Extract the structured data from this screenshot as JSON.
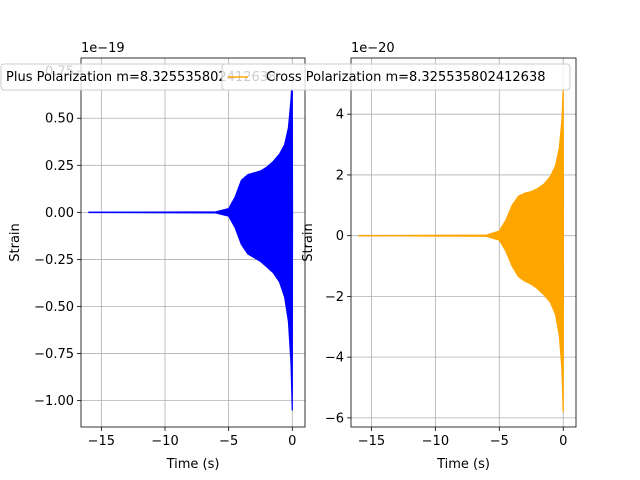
{
  "chart_data": [
    {
      "type": "line",
      "xlabel": "Time (s)",
      "ylabel": "Strain",
      "offset_text": "1e−19",
      "exponent": -19,
      "xlim": [
        -16.6,
        1.0
      ],
      "ylim": [
        -1.14,
        0.82
      ],
      "xticks": [
        -15,
        -10,
        -5,
        0
      ],
      "xtick_labels": [
        "−15",
        "−10",
        "−5",
        "0"
      ],
      "yticks": [
        -1.0,
        -0.75,
        -0.5,
        -0.25,
        0.0,
        0.25,
        0.5,
        0.75
      ],
      "ytick_labels": [
        "−1.00",
        "−0.75",
        "−0.50",
        "−0.25",
        "0.00",
        "0.25",
        "0.50",
        "0.75"
      ],
      "grid": true,
      "legend_position": "top",
      "series": [
        {
          "name": "Plus Polarization m=8.325535802412638",
          "color": "#0000ff",
          "envelope_upper": [
            [
              -16,
              0.0
            ],
            [
              -6,
              0.003
            ],
            [
              -5,
              0.02
            ],
            [
              -4.5,
              0.08
            ],
            [
              -4,
              0.17
            ],
            [
              -3.5,
              0.2
            ],
            [
              -3,
              0.21
            ],
            [
              -2.5,
              0.22
            ],
            [
              -2,
              0.24
            ],
            [
              -1.5,
              0.27
            ],
            [
              -1,
              0.31
            ],
            [
              -0.6,
              0.36
            ],
            [
              -0.3,
              0.45
            ],
            [
              -0.1,
              0.6
            ],
            [
              0.0,
              0.72
            ],
            [
              0.02,
              0.0
            ]
          ],
          "envelope_lower": [
            [
              -16,
              0.0
            ],
            [
              -6,
              -0.003
            ],
            [
              -5,
              -0.02
            ],
            [
              -4.5,
              -0.08
            ],
            [
              -4,
              -0.17
            ],
            [
              -3.5,
              -0.22
            ],
            [
              -3,
              -0.24
            ],
            [
              -2.5,
              -0.26
            ],
            [
              -2,
              -0.29
            ],
            [
              -1.5,
              -0.32
            ],
            [
              -1,
              -0.37
            ],
            [
              -0.6,
              -0.45
            ],
            [
              -0.3,
              -0.58
            ],
            [
              -0.1,
              -0.8
            ],
            [
              0.0,
              -1.05
            ],
            [
              0.02,
              0.0
            ]
          ]
        }
      ]
    },
    {
      "type": "line",
      "xlabel": "Time (s)",
      "ylabel": "Strain",
      "offset_text": "1e−20",
      "exponent": -20,
      "xlim": [
        -16.6,
        1.0
      ],
      "ylim": [
        -6.3,
        5.85
      ],
      "xticks": [
        -15,
        -10,
        -5,
        0
      ],
      "xtick_labels": [
        "−15",
        "−10",
        "−5",
        "0"
      ],
      "yticks": [
        -6,
        -4,
        -2,
        0,
        2,
        4
      ],
      "ytick_labels": [
        "−6",
        "−4",
        "−2",
        "0",
        "2",
        "4"
      ],
      "grid": true,
      "legend_position": "top",
      "series": [
        {
          "name": "Cross Polarization m=8.325535802412638",
          "color": "#ffa500",
          "envelope_upper": [
            [
              -16,
              0.0
            ],
            [
              -6,
              0.02
            ],
            [
              -5,
              0.15
            ],
            [
              -4.5,
              0.5
            ],
            [
              -4,
              1.0
            ],
            [
              -3.5,
              1.3
            ],
            [
              -3,
              1.4
            ],
            [
              -2.5,
              1.45
            ],
            [
              -2,
              1.55
            ],
            [
              -1.5,
              1.7
            ],
            [
              -1,
              1.95
            ],
            [
              -0.6,
              2.3
            ],
            [
              -0.3,
              2.9
            ],
            [
              -0.1,
              3.8
            ],
            [
              0.0,
              4.85
            ],
            [
              0.02,
              0.0
            ]
          ],
          "envelope_lower": [
            [
              -16,
              0.0
            ],
            [
              -6,
              -0.02
            ],
            [
              -5,
              -0.15
            ],
            [
              -4.5,
              -0.5
            ],
            [
              -4,
              -1.0
            ],
            [
              -3.5,
              -1.35
            ],
            [
              -3,
              -1.5
            ],
            [
              -2.5,
              -1.6
            ],
            [
              -2,
              -1.75
            ],
            [
              -1.5,
              -1.95
            ],
            [
              -1,
              -2.2
            ],
            [
              -0.6,
              -2.6
            ],
            [
              -0.3,
              -3.3
            ],
            [
              -0.1,
              -4.4
            ],
            [
              0.0,
              -5.8
            ],
            [
              0.02,
              0.0
            ]
          ]
        }
      ]
    }
  ]
}
